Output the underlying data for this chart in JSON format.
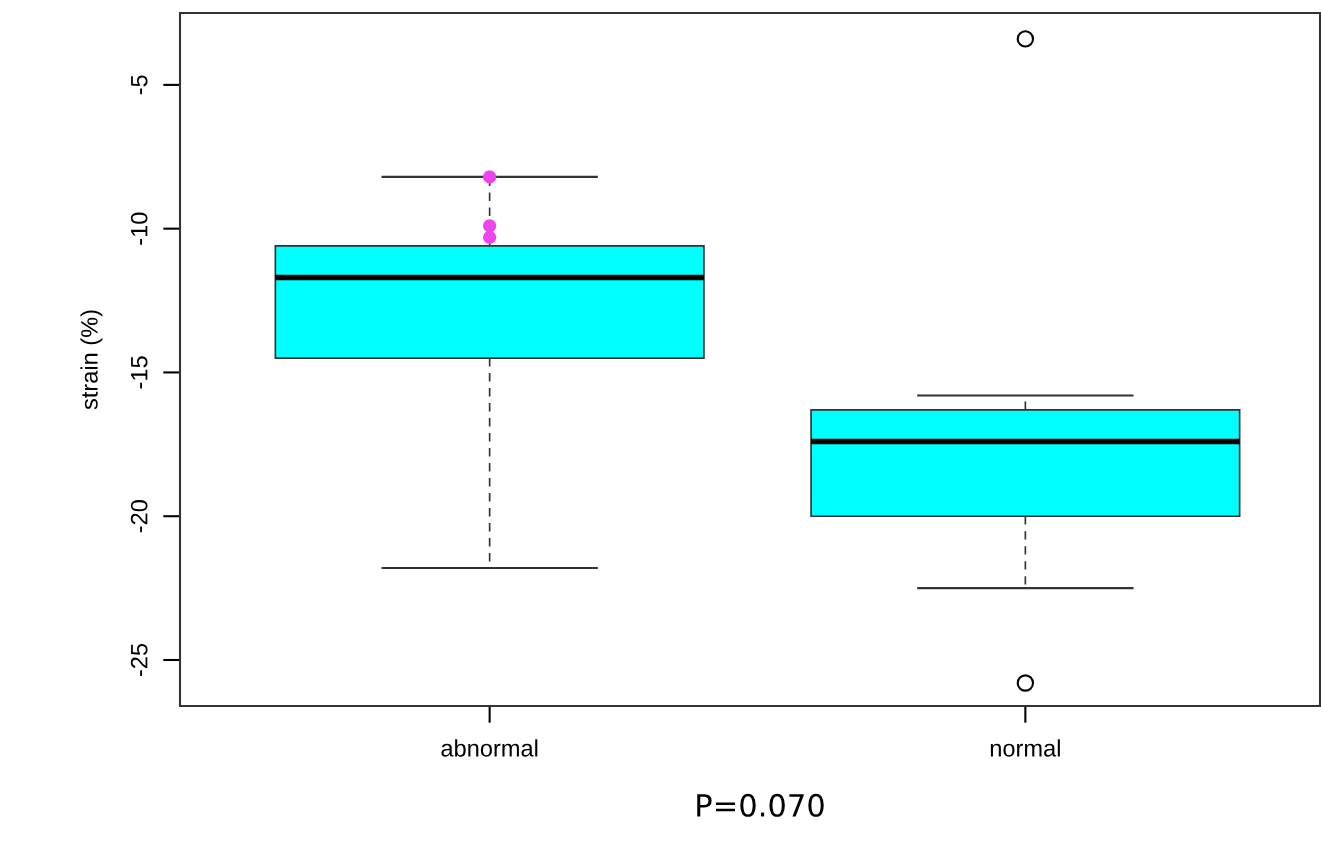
{
  "chart_data": {
    "type": "box",
    "ylabel": "strain (%)",
    "categories": [
      "abnormal",
      "normal"
    ],
    "color": "#00ffff",
    "boxes": [
      {
        "low": -21.8,
        "q1": -14.5,
        "median": -11.7,
        "q3": -10.6,
        "high": -8.2
      },
      {
        "low": -22.5,
        "q1": -20.0,
        "median": -17.4,
        "q3": -16.3,
        "high": -15.8,
        "outliers": [
          -3.4,
          -25.8
        ]
      }
    ],
    "series": [
      {
        "type": "scatter",
        "color": "#ee44ee",
        "x": [
          "abnormal",
          "abnormal",
          "abnormal"
        ],
        "values": [
          -8.2,
          -10.3,
          -9.9
        ]
      }
    ],
    "ylim": [
      -26.6,
      -2.5
    ],
    "yticks": [
      -25,
      -20,
      -15,
      -10,
      -5
    ],
    "grid": false,
    "annotations": [
      "P=0.070"
    ]
  }
}
